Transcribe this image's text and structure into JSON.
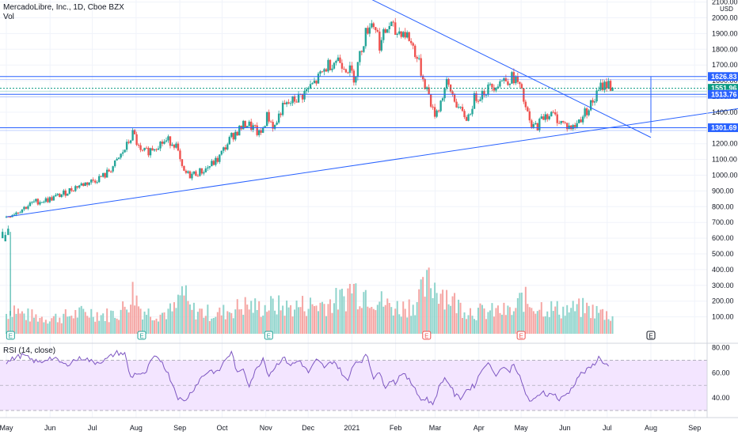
{
  "chart_data": {
    "type": "candlestick",
    "symbol_title": "MercadoLibre, Inc., 1D, Cboe BZX",
    "volume_label": "Vol",
    "rsi_label": "RSI (14, close)",
    "currency": "USD",
    "price_axis": {
      "ticks": [
        "2100.00",
        "2000.00",
        "1900.00",
        "1800.00",
        "1700.00",
        "1600.00",
        "1500.00",
        "1400.00",
        "1300.00",
        "1200.00",
        "1100.00",
        "1000.00",
        "900.00",
        "800.00",
        "700.00",
        "600.00",
        "500.00",
        "400.00",
        "300.00",
        "200.00",
        "100.00"
      ]
    },
    "rsi_axis": {
      "ticks": [
        "80.00",
        "60.00",
        "40.00"
      ],
      "band": [
        30,
        70
      ]
    },
    "time_axis": {
      "ticks": [
        {
          "label": "May",
          "t": 0
        },
        {
          "label": "Jun",
          "t": 31
        },
        {
          "label": "Jul",
          "t": 61
        },
        {
          "label": "Aug",
          "t": 92
        },
        {
          "label": "Sep",
          "t": 123
        },
        {
          "label": "Oct",
          "t": 153
        },
        {
          "label": "Nov",
          "t": 184
        },
        {
          "label": "Dec",
          "t": 214
        },
        {
          "label": "2021",
          "t": 245
        },
        {
          "label": "Feb",
          "t": 276
        },
        {
          "label": "Mar",
          "t": 304
        },
        {
          "label": "Apr",
          "t": 335
        },
        {
          "label": "May",
          "t": 365
        },
        {
          "label": "Jun",
          "t": 396
        },
        {
          "label": "Jul",
          "t": 426
        },
        {
          "label": "Aug",
          "t": 457
        },
        {
          "label": "Sep",
          "t": 488
        }
      ]
    },
    "price_path": [
      [
        0,
        735
      ],
      [
        10,
        780
      ],
      [
        20,
        830
      ],
      [
        30,
        845
      ],
      [
        40,
        880
      ],
      [
        50,
        930
      ],
      [
        60,
        960
      ],
      [
        70,
        1000
      ],
      [
        78,
        1080
      ],
      [
        85,
        1180
      ],
      [
        90,
        1270
      ],
      [
        95,
        1140
      ],
      [
        100,
        1150
      ],
      [
        108,
        1200
      ],
      [
        115,
        1220
      ],
      [
        120,
        1200
      ],
      [
        125,
        1020
      ],
      [
        130,
        1000
      ],
      [
        140,
        1030
      ],
      [
        150,
        1100
      ],
      [
        160,
        1250
      ],
      [
        170,
        1330
      ],
      [
        175,
        1300
      ],
      [
        180,
        1250
      ],
      [
        185,
        1380
      ],
      [
        190,
        1300
      ],
      [
        195,
        1420
      ],
      [
        203,
        1470
      ],
      [
        210,
        1510
      ],
      [
        220,
        1600
      ],
      [
        228,
        1700
      ],
      [
        235,
        1740
      ],
      [
        242,
        1680
      ],
      [
        247,
        1620
      ],
      [
        253,
        1850
      ],
      [
        258,
        1980
      ],
      [
        262,
        1940
      ],
      [
        265,
        1820
      ],
      [
        268,
        1900
      ],
      [
        272,
        1960
      ],
      [
        276,
        1900
      ],
      [
        280,
        1920
      ],
      [
        285,
        1880
      ],
      [
        290,
        1780
      ],
      [
        296,
        1600
      ],
      [
        300,
        1500
      ],
      [
        303,
        1380
      ],
      [
        307,
        1440
      ],
      [
        312,
        1580
      ],
      [
        317,
        1500
      ],
      [
        322,
        1400
      ],
      [
        327,
        1360
      ],
      [
        332,
        1490
      ],
      [
        340,
        1540
      ],
      [
        350,
        1600
      ],
      [
        360,
        1620
      ],
      [
        363,
        1580
      ],
      [
        366,
        1500
      ],
      [
        369,
        1400
      ],
      [
        372,
        1300
      ],
      [
        377,
        1320
      ],
      [
        382,
        1390
      ],
      [
        388,
        1380
      ],
      [
        393,
        1340
      ],
      [
        398,
        1310
      ],
      [
        402,
        1300
      ],
      [
        407,
        1360
      ],
      [
        412,
        1420
      ],
      [
        417,
        1480
      ],
      [
        422,
        1570
      ],
      [
        426,
        1580
      ],
      [
        430,
        1560
      ]
    ],
    "price_extra_candles": [
      [
        0,
        620
      ],
      [
        2,
        600
      ],
      [
        4,
        640
      ]
    ],
    "rsi_path": [
      [
        0,
        68
      ],
      [
        6,
        72
      ],
      [
        12,
        74
      ],
      [
        18,
        70
      ],
      [
        24,
        68
      ],
      [
        30,
        72
      ],
      [
        36,
        70
      ],
      [
        42,
        66
      ],
      [
        48,
        70
      ],
      [
        55,
        72
      ],
      [
        62,
        68
      ],
      [
        70,
        70
      ],
      [
        78,
        76
      ],
      [
        84,
        75
      ],
      [
        88,
        56
      ],
      [
        92,
        60
      ],
      [
        98,
        58
      ],
      [
        104,
        72
      ],
      [
        110,
        70
      ],
      [
        116,
        56
      ],
      [
        122,
        40
      ],
      [
        126,
        37
      ],
      [
        132,
        46
      ],
      [
        138,
        56
      ],
      [
        144,
        62
      ],
      [
        150,
        60
      ],
      [
        156,
        72
      ],
      [
        160,
        76
      ],
      [
        164,
        58
      ],
      [
        168,
        64
      ],
      [
        172,
        50
      ],
      [
        176,
        60
      ],
      [
        182,
        72
      ],
      [
        186,
        58
      ],
      [
        190,
        64
      ],
      [
        196,
        72
      ],
      [
        202,
        66
      ],
      [
        208,
        70
      ],
      [
        214,
        60
      ],
      [
        220,
        70
      ],
      [
        226,
        64
      ],
      [
        232,
        70
      ],
      [
        238,
        60
      ],
      [
        242,
        52
      ],
      [
        246,
        68
      ],
      [
        252,
        70
      ],
      [
        256,
        74
      ],
      [
        260,
        56
      ],
      [
        264,
        62
      ],
      [
        268,
        48
      ],
      [
        272,
        55
      ],
      [
        276,
        52
      ],
      [
        280,
        60
      ],
      [
        284,
        56
      ],
      [
        290,
        48
      ],
      [
        294,
        38
      ],
      [
        298,
        40
      ],
      [
        302,
        34
      ],
      [
        306,
        46
      ],
      [
        310,
        56
      ],
      [
        314,
        52
      ],
      [
        318,
        42
      ],
      [
        322,
        40
      ],
      [
        326,
        46
      ],
      [
        332,
        50
      ],
      [
        336,
        60
      ],
      [
        340,
        68
      ],
      [
        344,
        64
      ],
      [
        348,
        58
      ],
      [
        352,
        66
      ],
      [
        356,
        60
      ],
      [
        360,
        68
      ],
      [
        364,
        56
      ],
      [
        368,
        44
      ],
      [
        372,
        36
      ],
      [
        376,
        40
      ],
      [
        380,
        46
      ],
      [
        384,
        42
      ],
      [
        388,
        44
      ],
      [
        392,
        38
      ],
      [
        396,
        42
      ],
      [
        400,
        46
      ],
      [
        406,
        58
      ],
      [
        412,
        62
      ],
      [
        416,
        66
      ],
      [
        420,
        72
      ],
      [
        424,
        68
      ],
      [
        428,
        64
      ]
    ],
    "volume_path": [
      [
        0,
        140
      ],
      [
        5,
        190
      ],
      [
        10,
        140
      ],
      [
        20,
        120
      ],
      [
        30,
        110
      ],
      [
        40,
        120
      ],
      [
        50,
        140
      ],
      [
        60,
        150
      ],
      [
        70,
        130
      ],
      [
        80,
        150
      ],
      [
        85,
        200
      ],
      [
        90,
        300
      ],
      [
        95,
        180
      ],
      [
        100,
        150
      ],
      [
        110,
        140
      ],
      [
        120,
        170
      ],
      [
        125,
        310
      ],
      [
        130,
        170
      ],
      [
        140,
        150
      ],
      [
        150,
        140
      ],
      [
        160,
        170
      ],
      [
        170,
        200
      ],
      [
        180,
        180
      ],
      [
        190,
        200
      ],
      [
        200,
        180
      ],
      [
        210,
        200
      ],
      [
        220,
        200
      ],
      [
        230,
        220
      ],
      [
        240,
        250
      ],
      [
        245,
        340
      ],
      [
        250,
        280
      ],
      [
        255,
        300
      ],
      [
        260,
        260
      ],
      [
        270,
        200
      ],
      [
        280,
        180
      ],
      [
        290,
        220
      ],
      [
        296,
        300
      ],
      [
        300,
        360
      ],
      [
        305,
        330
      ],
      [
        310,
        300
      ],
      [
        320,
        200
      ],
      [
        330,
        160
      ],
      [
        340,
        150
      ],
      [
        350,
        160
      ],
      [
        360,
        150
      ],
      [
        366,
        260
      ],
      [
        370,
        210
      ],
      [
        380,
        190
      ],
      [
        390,
        170
      ],
      [
        400,
        170
      ],
      [
        410,
        180
      ],
      [
        420,
        150
      ],
      [
        430,
        130
      ]
    ],
    "levels": [
      {
        "label": "1626.83",
        "value": 1626.83,
        "color": "#2962ff"
      },
      {
        "label": "1551.96",
        "value": 1551.96,
        "color": "#089981"
      },
      {
        "label": "1513.76",
        "value": 1513.76,
        "color": "#2962ff"
      },
      {
        "label": "1301.69",
        "value": 1301.69,
        "color": "#2962ff"
      }
    ],
    "trendlines": [
      {
        "name": "descending-resistance",
        "from": [
          213,
          2320
        ],
        "to": [
          457,
          1240
        ]
      },
      {
        "name": "ascending-support",
        "from": [
          0,
          735
        ],
        "to": [
          532,
          1440
        ]
      }
    ],
    "measure": {
      "t": 457,
      "from": 1626.83,
      "to": 1270
    },
    "earnings_marker": "E",
    "earnings_times": [
      3,
      96,
      186,
      298,
      365,
      457
    ],
    "colors": {
      "up": "#26a69a",
      "down": "#ef5350",
      "line": "#2962ff",
      "rsi": "#7e57c2",
      "rsi_band": "#f3e5ff",
      "level_green": "#089981"
    }
  }
}
